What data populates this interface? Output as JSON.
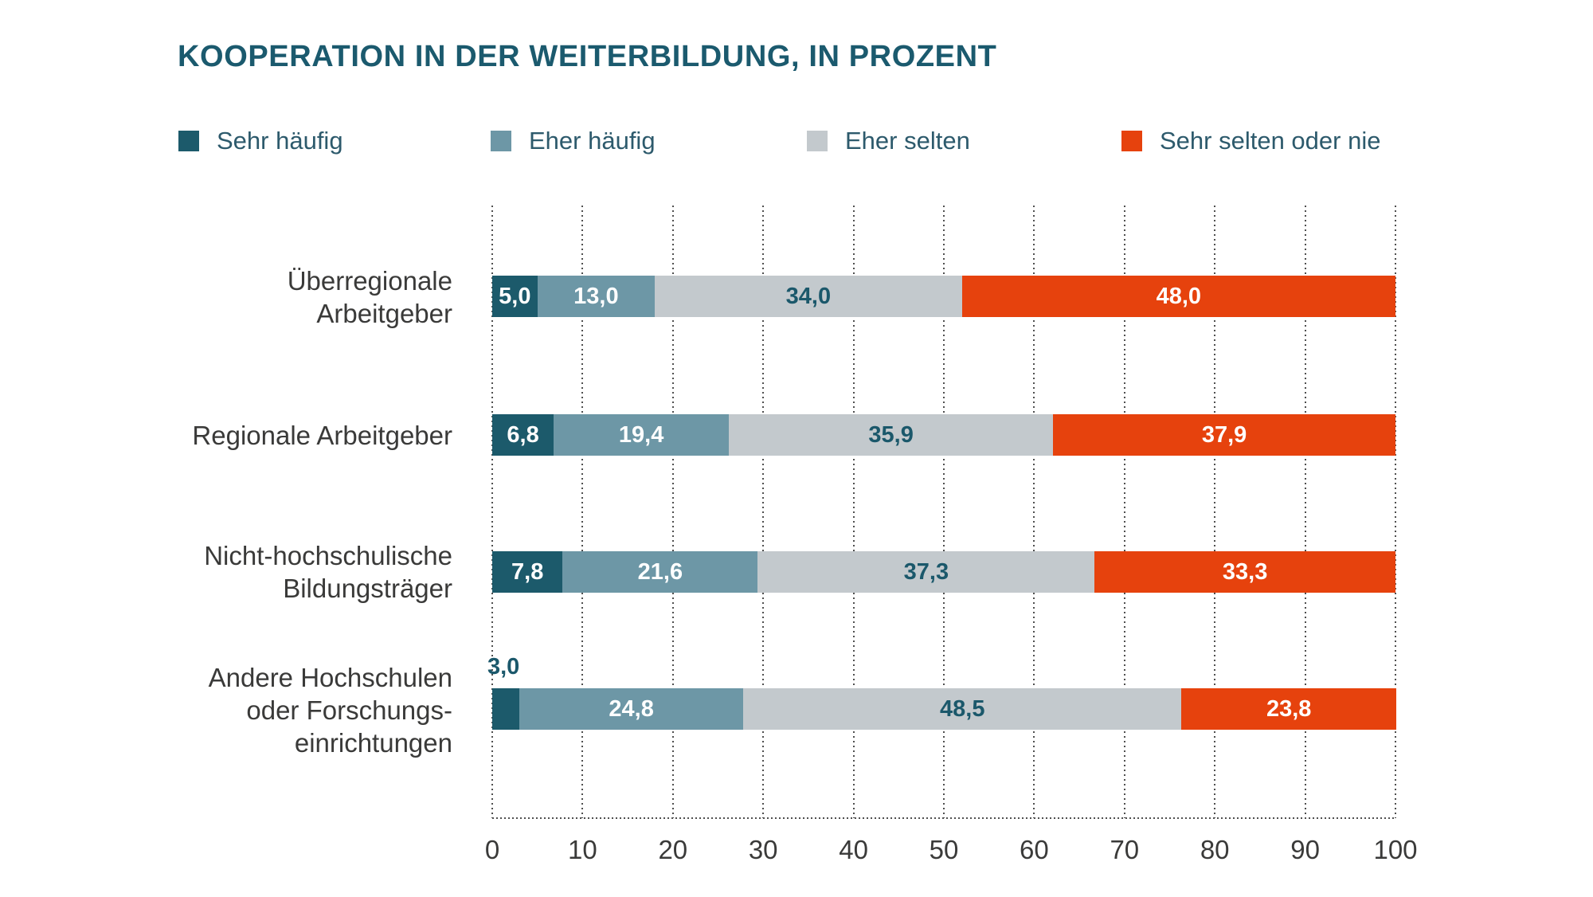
{
  "title": "KOOPERATION IN DER WEITERBILDUNG, IN PROZENT",
  "colors": {
    "title_text": "#1B5A6E",
    "legend_text": "#2D5A6C",
    "axis_text": "#3A3A39",
    "category_text": "#3A3A39",
    "gridline": "#4F4F4F",
    "sehr_haufig": "#1C5A6B",
    "eher_haufig": "#6D97A6",
    "eher_selten": "#C3C9CD",
    "sehr_selten_oder_nie": "#E6420D",
    "value_on_dark": "#FFFFFF",
    "value_on_gray": "#1B586B"
  },
  "legend": [
    {
      "label": "Sehr häufig",
      "color": "#1C5A6B"
    },
    {
      "label": "Eher häufig",
      "color": "#6D97A6"
    },
    {
      "label": "Eher selten",
      "color": "#C3C9CD"
    },
    {
      "label": "Sehr selten oder nie",
      "color": "#E6420D"
    }
  ],
  "chart_data": {
    "type": "bar",
    "orientation": "horizontal",
    "stacked": true,
    "title": "KOOPERATION IN DER WEITERBILDUNG, IN PROZENT",
    "categories": [
      "Überregionale Arbeitgeber",
      "Regionale Arbeitgeber",
      "Nicht-hochschulische Bildungsträger",
      "Andere Hochschulen oder Forschungseinrichtungen"
    ],
    "category_lines": [
      [
        "Überregionale",
        "Arbeitgeber"
      ],
      [
        "Regionale Arbeitgeber"
      ],
      [
        "Nicht-hochschulische",
        "Bildungsträger"
      ],
      [
        "Andere Hochschulen",
        "oder Forschungs-",
        "einrichtungen"
      ]
    ],
    "series": [
      {
        "name": "Sehr häufig",
        "color": "#1C5A6B",
        "values": [
          5.0,
          6.8,
          7.8,
          3.0
        ],
        "labels": [
          "5,0",
          "6,8",
          "7,8",
          "3,0"
        ],
        "label_color": "#FFFFFF",
        "label_outside": [
          false,
          false,
          false,
          true
        ]
      },
      {
        "name": "Eher häufig",
        "color": "#6D97A6",
        "values": [
          13.0,
          19.4,
          21.6,
          24.8
        ],
        "labels": [
          "13,0",
          "19,4",
          "21,6",
          "24,8"
        ],
        "label_color": "#FFFFFF",
        "label_outside": [
          false,
          false,
          false,
          false
        ]
      },
      {
        "name": "Eher selten",
        "color": "#C3C9CD",
        "values": [
          34.0,
          35.9,
          37.3,
          48.5
        ],
        "labels": [
          "34,0",
          "35,9",
          "37,3",
          "48,5"
        ],
        "label_color": "#1B586B",
        "label_outside": [
          false,
          false,
          false,
          false
        ]
      },
      {
        "name": "Sehr selten oder nie",
        "color": "#E6420D",
        "values": [
          48.0,
          37.9,
          33.3,
          23.8
        ],
        "labels": [
          "48,0",
          "37,9",
          "33,3",
          "23,8"
        ],
        "label_color": "#FFFFFF",
        "label_outside": [
          false,
          false,
          false,
          false
        ]
      }
    ],
    "xlim": [
      0,
      100
    ],
    "x_ticks": [
      0,
      10,
      20,
      30,
      40,
      50,
      60,
      70,
      80,
      90,
      100
    ],
    "grid": "dotted-vertical",
    "legend_position": "top"
  }
}
